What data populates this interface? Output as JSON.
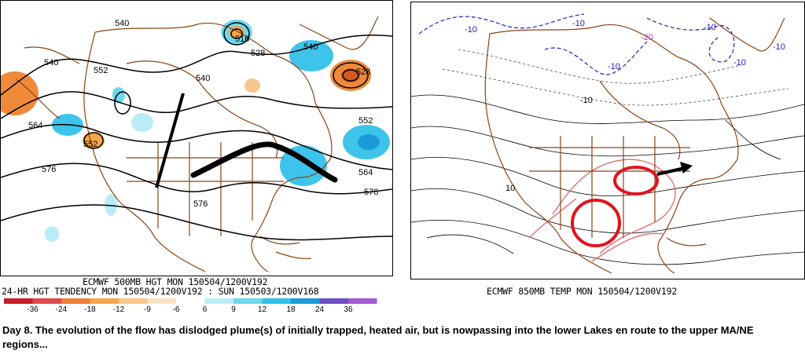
{
  "left_map": {
    "caption_line1": "ECMWF 500MB HGT MON 150504/1200V192",
    "caption_line2": "24-HR HGT TENDENCY MON 150504/1200V192 : SUN 150503/1200V168",
    "contour_labels": [
      "540",
      "516",
      "528",
      "540",
      "528",
      "552",
      "540",
      "540",
      "552",
      "564",
      "552",
      "576",
      "564",
      "576",
      "576"
    ],
    "scale_labels": [
      "-36",
      "-24",
      "-18",
      "-12",
      "-9",
      "-6",
      "6",
      "9",
      "12",
      "18",
      "24",
      "36"
    ],
    "scale_colors": [
      "#c81e28",
      "#e04a4a",
      "#ee7e3a",
      "#f5a64a",
      "#f8c68a",
      "#fbe2c0",
      "#ffffff",
      "#b9ecf7",
      "#6fd7ee",
      "#2fc0e8",
      "#1c9bd8",
      "#6f4fc4",
      "#a45ad0"
    ]
  },
  "right_map": {
    "caption": "ECMWF 850MB TEMP MON 150504/1200V192",
    "contour_labels": [
      "-10",
      "-10",
      "-20",
      "-10",
      "-10",
      "-10",
      "-10",
      "10",
      "-10"
    ]
  },
  "note": "Day 8.  The evolution of the flow has dislodged plume(s) of initially trapped, heated air, but is nowpassing into the lower Lakes en route to the upper MA/NE regions...",
  "colors": {
    "outline": "#8b4513",
    "negative_fill": "#ee8a3a",
    "positive_fill": "#3ec4ea",
    "annotation_red": "#e0141e",
    "cold_dashed": "#2020c0",
    "warm_contour": "#e27070"
  }
}
